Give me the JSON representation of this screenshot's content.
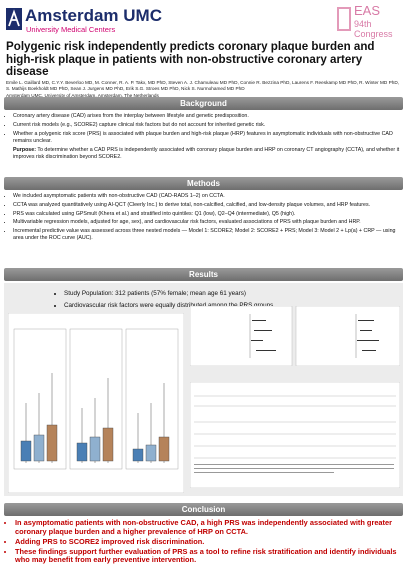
{
  "header": {
    "logo_name": "Amsterdam UMC",
    "logo_sub": "University Medical Centers",
    "congress_name": "EAS",
    "congress_edition": "94th Congress",
    "title": "Polygenic risk independently predicts coronary plaque burden and high-risk plaque in patients with non-obstructive coronary artery disease",
    "authors": "Emile L. Gaillard MD, C.Y.Y. Beverloo MD, M. Conner, R. A. P. Takx, MD PhD, Steven A. J. Chamuleau MD PhD, Connie R. Bezzina PhD, Laurens F. Reeskamp MD PhD, R. Winter MD PhD, S. Mathijs Boekholdt MD PhD, Sean J. Jurgens MD PhD, Erik S.G. Stroes MD PhD, Nick S. Nurmohamed MD PhD",
    "affiliation": "Amsterdam UMC, University of Amsterdam, Amsterdam, The Netherlands"
  },
  "background": {
    "heading": "Background",
    "bullets": [
      "Coronary artery disease (CAD) arises from the interplay between lifestyle and genetic predisposition.",
      "Current risk models (e.g., SCORE2) capture clinical risk factors but do not account for inherited genetic risk.",
      "Whether a polygenic risk score (PRS) is associated with plaque burden and high-risk plaque (HRP) features in asymptomatic individuals with non-obstructive CAD remains unclear."
    ],
    "purpose": {
      "label": "Purpose:",
      "text": "To determine whether a CAD PRS is independently associated with coronary plaque burden and HRP on coronary CT angiography (CCTA), and whether it improves risk discrimination beyond SCORE2."
    }
  },
  "methods": {
    "heading": "Methods",
    "bullets": [
      "We included asymptomatic patients with non-obstructive CAD (CAD-RADS 1–2) on CCTA.",
      "CCTA was analyzed quantitatively using AI-QCT (Cleerly Inc.) to derive total, non-calcified, calcified, and low-density plaque volumes, and HRP features.",
      "PRS was calculated using GPSmult (Khera et al.) and stratified into quintiles: Q1 (low), Q2–Q4 (intermediate), Q5 (high).",
      "Multivariable regression models, adjusted for age, sex), and cardiovascular risk factors, evaluated associations of PRS with plaque burden and HRP.",
      "Incremental predictive value was assessed across three nested models — Model 1: SCORE2; Model 2: SCORE2 + PRS; Model 3: Model 2 + Lp(a) + CRP — using area under the ROC curve (AUC)."
    ]
  },
  "results": {
    "heading": "Results",
    "bullets": [
      "Study Population: 312 patients (57% female; mean age 61 years)",
      "Cardiovascular risk factors were equally distributed among the PRS groups"
    ]
  },
  "conclusion": {
    "heading": "Conclusion",
    "bullets": [
      "In asymptomatic patients with non-obstructive CAD, a high PRS was independently associated with greater coronary plaque burden and a higher prevalence of HRP on CCTA.",
      "Adding PRS to SCORE2 improved risk discrimination.",
      "These findings support further evaluation of PRS as a tool to refine risk stratification and identify individuals who may benefit from early preventive intervention."
    ]
  }
}
